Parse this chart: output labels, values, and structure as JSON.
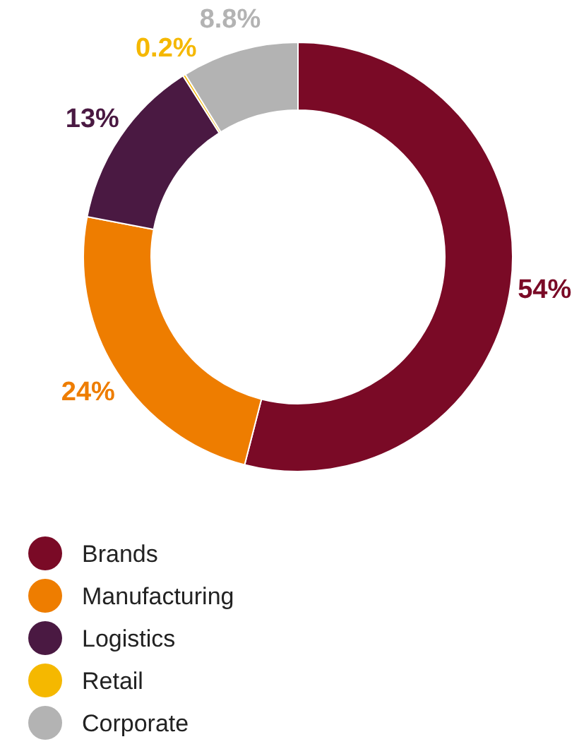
{
  "chart_data": {
    "type": "donut",
    "categories": [
      "Brands",
      "Manufacturing",
      "Logistics",
      "Retail",
      "Corporate"
    ],
    "values": [
      54,
      24,
      13,
      0.2,
      8.8
    ],
    "colors": [
      "#7a0a26",
      "#ee7d00",
      "#4a1942",
      "#f5b800",
      "#b3b3b3"
    ],
    "value_labels": [
      "54%",
      "24%",
      "13%",
      "0.2%",
      "8.8%"
    ],
    "legend": "bottom"
  }
}
